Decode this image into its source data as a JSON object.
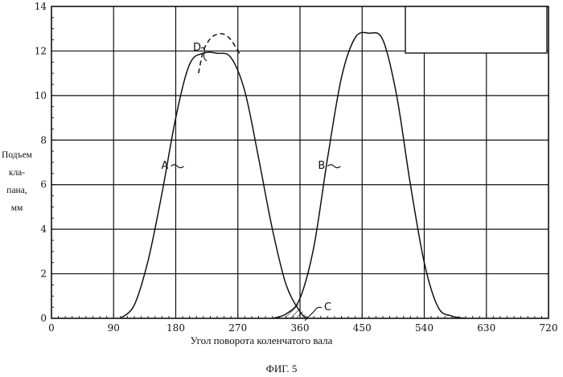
{
  "chart_data": {
    "type": "line",
    "title": "",
    "xlabel": "Угол поворота коленчатого вала",
    "ylabel_lines": [
      "Подъем",
      "кла-",
      "пана,",
      "мм"
    ],
    "xlim": [
      0,
      720
    ],
    "ylim": [
      0,
      14
    ],
    "x_ticks": [
      0,
      90,
      180,
      270,
      360,
      450,
      540,
      630,
      720
    ],
    "y_ticks": [
      0,
      2,
      4,
      6,
      8,
      10,
      12,
      14
    ],
    "x_tick_labels": [
      "0",
      "90",
      "180",
      "270",
      "360",
      "450",
      "540",
      "630",
      "720"
    ],
    "y_tick_labels": [
      "0",
      "2",
      "4",
      "6",
      "8",
      "10",
      "12",
      "14"
    ],
    "grid": true,
    "series": [
      {
        "name": "A",
        "style": "solid",
        "x": [
          100,
          120,
          140,
          160,
          180,
          200,
          220,
          240,
          260,
          280,
          300,
          320,
          340,
          360,
          370
        ],
        "y": [
          0,
          0.6,
          2.6,
          5.6,
          9.0,
          11.4,
          11.9,
          11.9,
          11.7,
          10.2,
          7.2,
          4.0,
          1.5,
          0.3,
          0
        ]
      },
      {
        "name": "D",
        "style": "dashed",
        "x": [
          213,
          220,
          230,
          240,
          250,
          260,
          270,
          275
        ],
        "y": [
          11.0,
          12.0,
          12.55,
          12.75,
          12.75,
          12.5,
          12.0,
          11.8
        ]
      },
      {
        "name": "B",
        "style": "solid",
        "x": [
          320,
          340,
          360,
          380,
          400,
          420,
          440,
          460,
          480,
          500,
          520,
          540,
          560,
          580,
          600
        ],
        "y": [
          0,
          0.2,
          0.9,
          3.2,
          7.2,
          10.8,
          12.6,
          12.8,
          12.5,
          10.0,
          6.0,
          2.5,
          0.5,
          0.1,
          0
        ]
      }
    ],
    "annotations": [
      {
        "text": "A",
        "x": 159,
        "y": 6.9
      },
      {
        "text": "B",
        "x": 386,
        "y": 6.9
      },
      {
        "text": "C",
        "x": 395,
        "y": 0.55
      },
      {
        "text": "D",
        "x": 205,
        "y": 12.2
      }
    ],
    "shaded_region": {
      "label": "C",
      "x_range": [
        330,
        375
      ]
    },
    "legend_box": "top-right"
  },
  "caption": "ФИГ. 5"
}
